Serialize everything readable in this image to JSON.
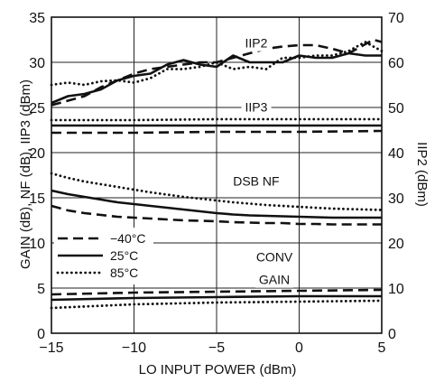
{
  "chart_data": {
    "type": "line",
    "xlabel": "LO INPUT POWER (dBm)",
    "ylabel_left": "GAIN (dB), NF (dB), IIP3 (dBm)",
    "ylabel_right": "IIP2 (dBm)",
    "xlim": [
      -15,
      5
    ],
    "ylim_left": [
      0,
      35
    ],
    "ylim_right": [
      0,
      70
    ],
    "x_ticks": [
      "−15",
      "−10",
      "−5",
      "0",
      "5"
    ],
    "y_left_ticks": [
      "0",
      "5",
      "10",
      "15",
      "20",
      "25",
      "30",
      "35"
    ],
    "y_right_ticks": [
      "0",
      "10",
      "20",
      "30",
      "40",
      "50",
      "60",
      "70"
    ],
    "grid": true,
    "legend": {
      "placement": "lower-left",
      "entries": [
        {
          "label": "−40°C",
          "style": "dashed"
        },
        {
          "label": "25°C",
          "style": "solid"
        },
        {
          "label": "85°C",
          "style": "dotted"
        }
      ]
    },
    "annotations": [
      {
        "text": "IIP2",
        "x": -2.6,
        "y": 32.0
      },
      {
        "text": "IIP3",
        "x": -2.6,
        "y": 24.9
      },
      {
        "text": "DSB NF",
        "x": -2.6,
        "y": 16.7
      },
      {
        "text": "CONV",
        "x": -1.5,
        "y": 8.3
      },
      {
        "text": "GAIN",
        "x": -1.5,
        "y": 5.8
      }
    ],
    "series": [
      {
        "group": "IIP2",
        "axis": "right",
        "temp": "−40°C",
        "style": "dashed",
        "x": [
          -15,
          -14,
          -13,
          -12,
          -11,
          -10,
          -9,
          -8,
          -7,
          -6,
          -5,
          -4,
          -3,
          -2,
          -1,
          0,
          1,
          2,
          3,
          4,
          4.5,
          5
        ],
        "y": [
          50.5,
          51.5,
          52.5,
          54.5,
          56,
          57.5,
          58.5,
          59,
          59.5,
          60,
          60,
          61,
          62,
          63,
          63.5,
          63.8,
          63.8,
          63,
          62,
          64,
          65,
          64.5
        ]
      },
      {
        "group": "IIP2",
        "axis": "right",
        "temp": "25°C",
        "style": "solid",
        "x": [
          -15,
          -14,
          -13,
          -12,
          -11,
          -10,
          -9,
          -8,
          -7,
          -6,
          -5,
          -4,
          -3,
          -2,
          -1,
          0,
          1,
          2,
          3,
          4,
          5
        ],
        "y": [
          51,
          52.5,
          53,
          54,
          56,
          57,
          57.5,
          59.5,
          60.5,
          59.5,
          59,
          61.5,
          60,
          60,
          60,
          61.5,
          61,
          61,
          62,
          61.5,
          61.5
        ]
      },
      {
        "group": "IIP2",
        "axis": "right",
        "temp": "85°C",
        "style": "dotted",
        "x": [
          -15,
          -14,
          -13,
          -12,
          -11,
          -10,
          -9,
          -8,
          -7,
          -6,
          -5,
          -4,
          -3,
          -2,
          -1,
          0,
          1,
          2,
          3,
          4,
          4.5,
          5
        ],
        "y": [
          55,
          55.5,
          55,
          55.8,
          56,
          55.5,
          56.5,
          58.5,
          58.5,
          59,
          60,
          58.5,
          59,
          58.5,
          61,
          61,
          61.5,
          61.5,
          62.5,
          64.5,
          63.5,
          62.5
        ]
      },
      {
        "group": "IIP3",
        "axis": "left",
        "temp": "−40°C",
        "style": "dashed",
        "x": [
          -15,
          -10,
          -5,
          0,
          5
        ],
        "y": [
          22.2,
          22.2,
          22.3,
          22.3,
          22.4
        ]
      },
      {
        "group": "IIP3",
        "axis": "left",
        "temp": "25°C",
        "style": "solid",
        "x": [
          -15,
          -10,
          -5,
          0,
          5
        ],
        "y": [
          23.0,
          23.0,
          23.0,
          23.0,
          23.0
        ]
      },
      {
        "group": "IIP3",
        "axis": "left",
        "temp": "85°C",
        "style": "dotted",
        "x": [
          -15,
          -10,
          -5,
          0,
          5
        ],
        "y": [
          23.6,
          23.6,
          23.7,
          23.7,
          23.7
        ]
      },
      {
        "group": "DSB NF",
        "axis": "left",
        "temp": "−40°C",
        "style": "dashed",
        "x": [
          -15,
          -14,
          -13,
          -12,
          -11,
          -10,
          -9,
          -8,
          -7,
          -6,
          -5,
          -4,
          -3,
          -2,
          -1,
          0,
          1,
          2,
          3,
          4,
          5
        ],
        "y": [
          14.1,
          13.6,
          13.3,
          13.1,
          12.9,
          12.8,
          12.7,
          12.6,
          12.5,
          12.45,
          12.4,
          12.3,
          12.25,
          12.2,
          12.2,
          12.1,
          12.1,
          12.05,
          12.05,
          12.05,
          12.05
        ]
      },
      {
        "group": "DSB NF",
        "axis": "left",
        "temp": "25°C",
        "style": "solid",
        "x": [
          -15,
          -14,
          -13,
          -12,
          -11,
          -10,
          -9,
          -8,
          -7,
          -6,
          -5,
          -4,
          -3,
          -2,
          -1,
          0,
          1,
          2,
          3,
          4,
          5
        ],
        "y": [
          15.8,
          15.4,
          15.1,
          14.8,
          14.5,
          14.3,
          14.1,
          13.9,
          13.7,
          13.5,
          13.3,
          13.15,
          13.05,
          13.0,
          12.95,
          12.9,
          12.85,
          12.8,
          12.8,
          12.8,
          12.8
        ]
      },
      {
        "group": "DSB NF",
        "axis": "left",
        "temp": "85°C",
        "style": "dotted",
        "x": [
          -15,
          -14,
          -13,
          -12,
          -11,
          -10,
          -9,
          -8,
          -7,
          -6,
          -5,
          -4,
          -3,
          -2,
          -1,
          0,
          1,
          2,
          3,
          4,
          5
        ],
        "y": [
          17.7,
          17.2,
          16.8,
          16.5,
          16.2,
          15.9,
          15.6,
          15.35,
          15.1,
          14.9,
          14.7,
          14.5,
          14.35,
          14.2,
          14.1,
          14.0,
          13.9,
          13.8,
          13.75,
          13.7,
          13.65
        ]
      },
      {
        "group": "CONV GAIN",
        "axis": "left",
        "temp": "−40°C",
        "style": "dashed",
        "x": [
          -15,
          -10,
          -5,
          0,
          5
        ],
        "y": [
          4.3,
          4.5,
          4.6,
          4.7,
          4.8
        ]
      },
      {
        "group": "CONV GAIN",
        "axis": "left",
        "temp": "25°C",
        "style": "solid",
        "x": [
          -15,
          -10,
          -5,
          0,
          5
        ],
        "y": [
          3.7,
          3.9,
          4.0,
          4.1,
          4.1
        ]
      },
      {
        "group": "CONV GAIN",
        "axis": "left",
        "temp": "85°C",
        "style": "dotted",
        "x": [
          -15,
          -10,
          -5,
          0,
          5
        ],
        "y": [
          2.8,
          3.2,
          3.4,
          3.5,
          3.6
        ]
      }
    ]
  }
}
